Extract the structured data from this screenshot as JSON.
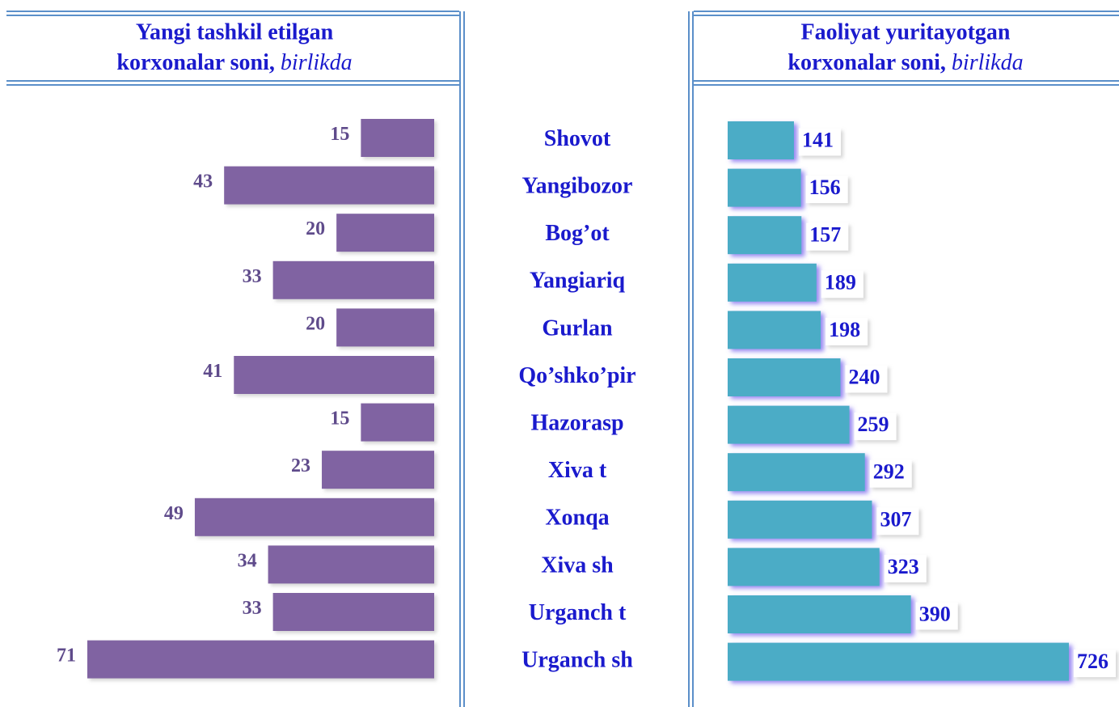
{
  "chart_data": {
    "type": "bar",
    "categories": [
      "Shovot",
      "Yangibozor",
      "Bog’ot",
      "Yangiariq",
      "Gurlan",
      "Qo’shko’pir",
      "Hazorasp",
      "Xiva t",
      "Xonqa",
      "Xiva sh",
      "Urganch t",
      "Urganch sh"
    ],
    "series": [
      {
        "name": "Yangi tashkil etilgan",
        "name2": "korxonalar soni,",
        "unit": "birlikda",
        "color": "#8064a2",
        "values": [
          15,
          43,
          20,
          33,
          20,
          41,
          15,
          23,
          49,
          34,
          33,
          71
        ]
      },
      {
        "name": "Faoliyat yuritayotgan",
        "name2": "korxonalar soni,",
        "unit": "birlikda",
        "color": "#4bacc6",
        "values": [
          141,
          156,
          157,
          189,
          198,
          240,
          259,
          292,
          307,
          323,
          390,
          726
        ]
      }
    ]
  }
}
